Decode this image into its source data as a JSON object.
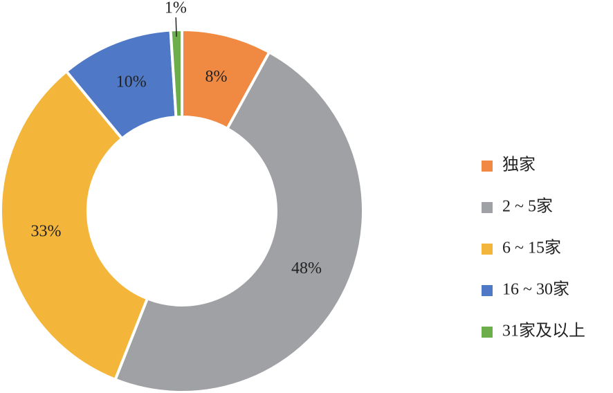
{
  "chart_data": {
    "type": "donut",
    "categories": [
      "独家",
      "2 ~ 5家",
      "6 ~ 15家",
      "16 ~ 30家",
      "31家及以上"
    ],
    "values": [
      8,
      48,
      33,
      10,
      1
    ],
    "value_labels": [
      "8%",
      "48%",
      "33%",
      "10%",
      "1%"
    ],
    "colors": [
      "#f08a43",
      "#a0a1a4",
      "#f4b63a",
      "#4f78c6",
      "#6cae4b"
    ],
    "legend": "right"
  }
}
